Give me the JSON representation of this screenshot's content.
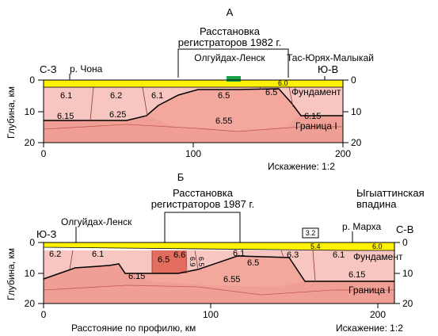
{
  "panelA": {
    "letter": "А",
    "array_title_1": "Расстановка",
    "array_title_2": "регистраторов 1982 г.",
    "station_left": "Олгуйдах-Ленск",
    "station_right": "Тас-Юрях-Малыкай",
    "dir_left": "С-З",
    "dir_right": "Ю-В",
    "river": "р. Чона",
    "y_label": "Глубина, км",
    "y_ticks": [
      "0",
      "10",
      "20"
    ],
    "y_ticks_right": [
      "0",
      "10",
      "20"
    ],
    "x_ticks": [
      "0",
      "100",
      "200"
    ],
    "distortion": "Искажение: 1:2",
    "fundament": "Фундамент",
    "boundary": "Граница I",
    "velocities": {
      "v61a": "6.1",
      "v62": "6.2",
      "v61b": "6.1",
      "v65": "6.5",
      "v65r": "6.5",
      "v60": "6.0",
      "v615": "6.15",
      "v625": "6.25",
      "v655": "6.55",
      "v615r": "6.15"
    }
  },
  "panelB": {
    "letter": "Б",
    "array_title_1": "Расстановка",
    "array_title_2": "регистраторов 1987 г.",
    "station_left": "Олгуйдах-Ленск",
    "basin_1": "Ыгыаттинская",
    "basin_2": "впадина",
    "dir_left": "Ю-З",
    "dir_right": "С-В",
    "river": "р. Марха",
    "box_value": "3.2",
    "y_label": "Глубина, км",
    "y_ticks": [
      "0",
      "10",
      "20"
    ],
    "y_ticks_right": [
      "0",
      "10",
      "20"
    ],
    "x_ticks": [
      "0",
      "100",
      "200"
    ],
    "x_label": "Расстояние по профилю, км",
    "distortion": "Искажение: 1:2",
    "fundament": "Фундамент",
    "boundary": "Граница I",
    "velocities": {
      "v62": "6.2",
      "v61a": "6.1",
      "v65a": "6.5",
      "v66": "6.6",
      "v69": "6.9",
      "v65b": "6.5",
      "v61b": "6.1",
      "v65c": "6.5",
      "v63": "6.3",
      "v61c": "6.1",
      "v54": "5.4",
      "v60": "6.0",
      "v615a": "6.15",
      "v655": "6.55",
      "v615b": "6.15"
    }
  }
}
